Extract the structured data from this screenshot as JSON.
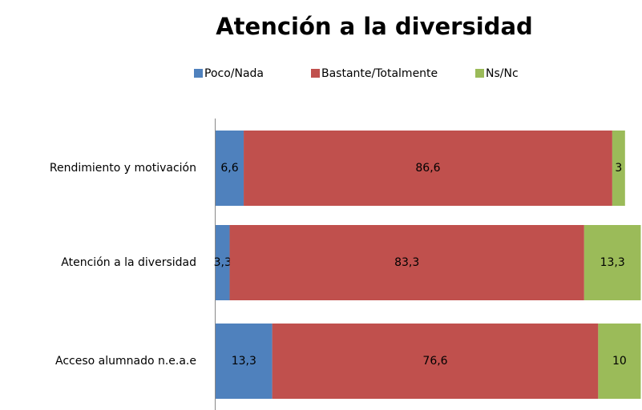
{
  "chart_data": {
    "type": "stacked_barh",
    "title": "Atención a la diversidad",
    "categories": [
      "Rendimiento y motivación",
      "Atención a la diversidad",
      "Acceso alumnado n.e.a.e"
    ],
    "series": [
      {
        "name": "Poco/Nada",
        "color": "#4f81bd",
        "values": [
          6.6,
          3.3,
          13.3
        ],
        "value_labels": [
          "6,6",
          "3,3",
          "13,3"
        ]
      },
      {
        "name": "Bastante/Totalmente",
        "color": "#c0504d",
        "values": [
          86.6,
          83.3,
          76.6
        ],
        "value_labels": [
          "86,6",
          "83,3",
          "76,6"
        ]
      },
      {
        "name": "Ns/Nc",
        "color": "#9bbb59",
        "values": [
          3,
          13.3,
          10
        ],
        "value_labels": [
          "3",
          "13,3",
          "10"
        ]
      }
    ],
    "xlim": [
      0,
      100
    ],
    "legend": "top"
  }
}
